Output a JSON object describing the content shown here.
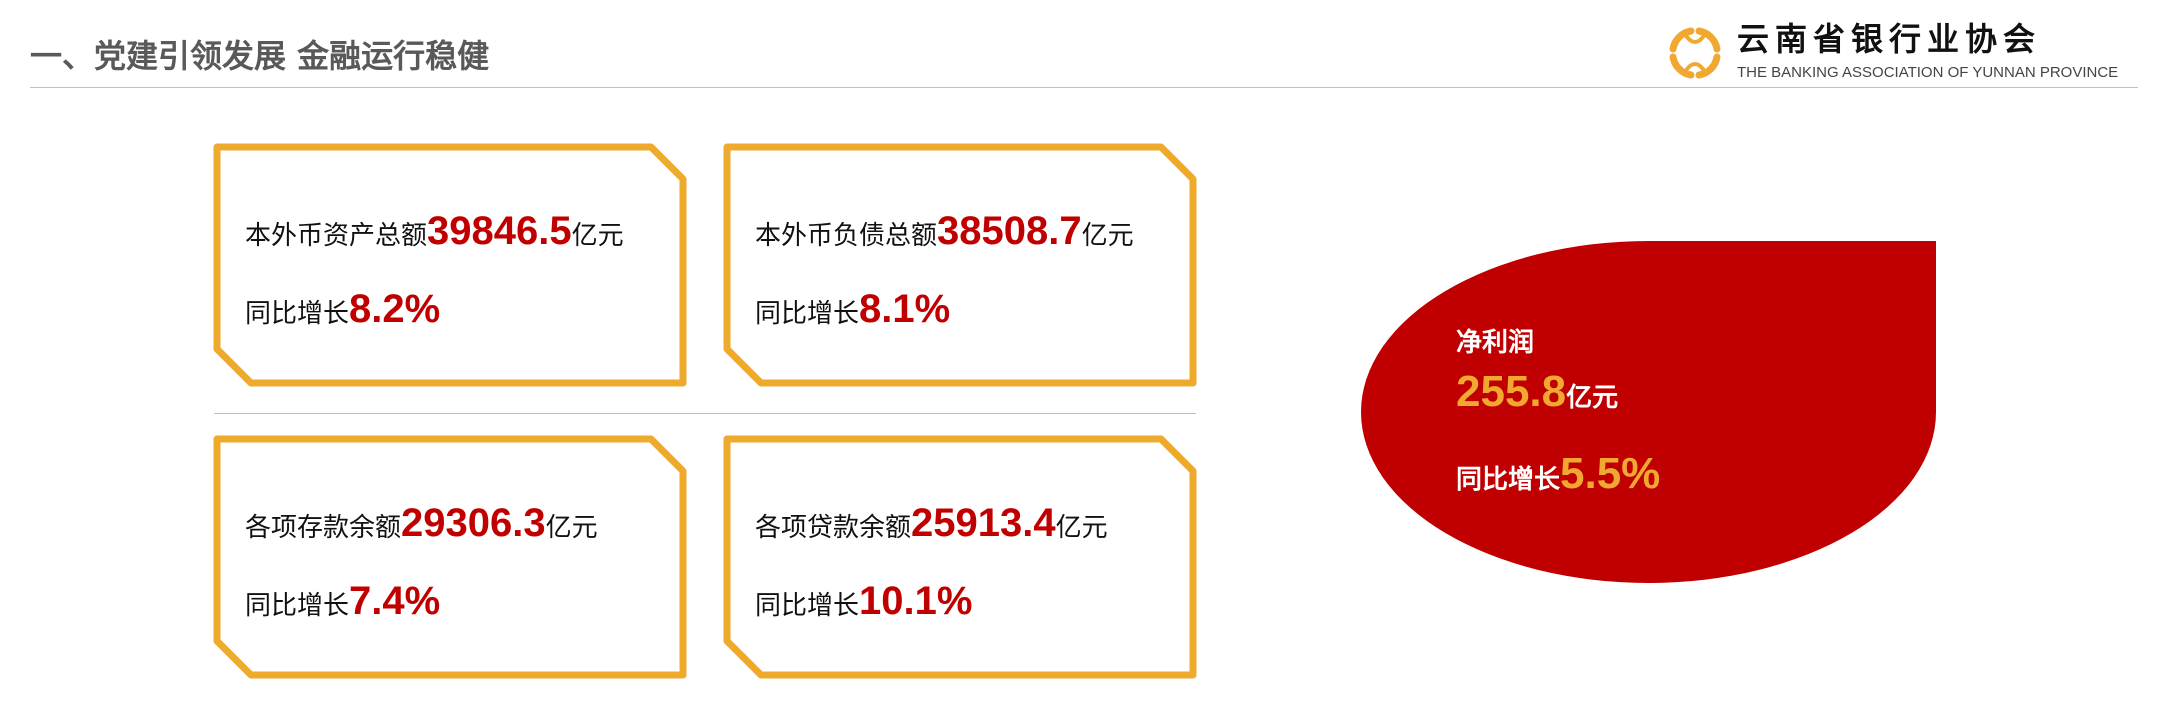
{
  "header": {
    "title": "一、党建引领发展 金融运行稳健",
    "logo": {
      "name_cn": "云南省银行业协会",
      "name_en": "THE BANKING ASSOCIATION OF YUNNAN PROVINCE",
      "icon": "coin-logo-icon",
      "color": "#f0a830"
    }
  },
  "colors": {
    "accent_red": "#c00000",
    "card_border": "#eeaa2c",
    "highlight_orange": "#f0a830"
  },
  "cards": [
    {
      "label": "本外币资产总额",
      "value": "39846.5",
      "unit": "亿元",
      "growth_label": "同比增长",
      "growth": "8.2%"
    },
    {
      "label": "本外币负债总额",
      "value": "38508.7",
      "unit": "亿元",
      "growth_label": "同比增长",
      "growth": "8.1%"
    },
    {
      "label": "各项存款余额",
      "value": "29306.3",
      "unit": "亿元",
      "growth_label": "同比增长",
      "growth": "7.4%"
    },
    {
      "label": "各项贷款余额",
      "value": "25913.4",
      "unit": "亿元",
      "growth_label": "同比增长",
      "growth": "10.1%"
    }
  ],
  "profit": {
    "label": "净利润",
    "value": "255.8",
    "unit": "亿元",
    "growth_label": "同比增长",
    "growth": "5.5%"
  }
}
